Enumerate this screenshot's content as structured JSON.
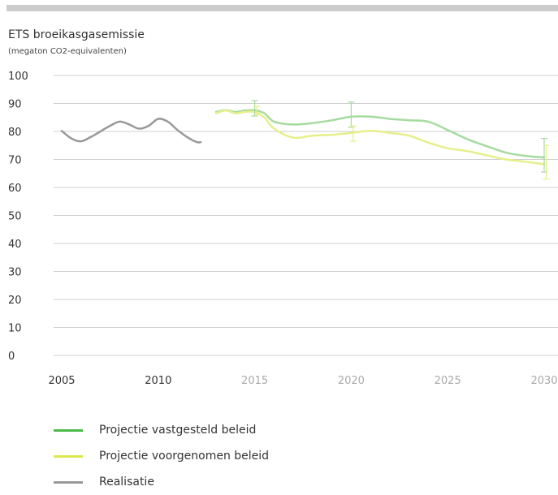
{
  "chart_data": {
    "type": "line",
    "title": "ETS broeikasgasemissie",
    "subtitle": "(megaton CO2-equivalenten)",
    "ylim": [
      0,
      100
    ],
    "yticks": [
      0,
      10,
      20,
      30,
      40,
      50,
      60,
      70,
      80,
      90,
      100
    ],
    "xlim": [
      2005,
      2030
    ],
    "xticks": [
      {
        "value": 2005,
        "label": "2005",
        "color": "#333333"
      },
      {
        "value": 2010,
        "label": "2010",
        "color": "#333333"
      },
      {
        "value": 2015,
        "label": "2015",
        "color": "#aaaaaa"
      },
      {
        "value": 2020,
        "label": "2020",
        "color": "#aaaaaa"
      },
      {
        "value": 2025,
        "label": "2025",
        "color": "#aaaaaa"
      },
      {
        "value": 2030,
        "label": "2030",
        "color": "#aaaaaa"
      }
    ],
    "grid": true,
    "series": [
      {
        "name": "Realisatie",
        "color": "#999999",
        "points": [
          [
            2005,
            80.2
          ],
          [
            2005.5,
            77.5
          ],
          [
            2006,
            76.5
          ],
          [
            2006.5,
            78
          ],
          [
            2007,
            80
          ],
          [
            2007.5,
            82
          ],
          [
            2008,
            83.5
          ],
          [
            2008.5,
            82.5
          ],
          [
            2009,
            81
          ],
          [
            2009.5,
            82
          ],
          [
            2010,
            84.5
          ],
          [
            2010.5,
            83.5
          ],
          [
            2011,
            80.5
          ],
          [
            2011.5,
            78
          ],
          [
            2012,
            76.2
          ],
          [
            2012.2,
            76.2
          ]
        ]
      },
      {
        "name": "Projectie vastgesteld beleid",
        "color": "#a6dba0",
        "points": [
          [
            2013,
            87
          ],
          [
            2013.5,
            87.6
          ],
          [
            2014,
            87
          ],
          [
            2014.5,
            87.5
          ],
          [
            2015,
            87.6
          ],
          [
            2015.5,
            86.5
          ],
          [
            2016,
            83.5
          ],
          [
            2017,
            82.5
          ],
          [
            2018,
            83
          ],
          [
            2019,
            84
          ],
          [
            2020,
            85.3
          ],
          [
            2021,
            85.3
          ],
          [
            2022,
            84.5
          ],
          [
            2023,
            84
          ],
          [
            2024,
            83.5
          ],
          [
            2025,
            80.5
          ],
          [
            2026,
            77.3
          ],
          [
            2027,
            74.8
          ],
          [
            2028,
            72.5
          ],
          [
            2029,
            71.3
          ],
          [
            2030,
            70.7
          ]
        ]
      },
      {
        "name": "Projectie voorgenomen beleid",
        "color": "#e6ef8a",
        "points": [
          [
            2013,
            86.5
          ],
          [
            2013.5,
            87.5
          ],
          [
            2014,
            86.5
          ],
          [
            2014.5,
            87
          ],
          [
            2015,
            87
          ],
          [
            2015.5,
            85
          ],
          [
            2016,
            81
          ],
          [
            2017,
            77.8
          ],
          [
            2018,
            78.5
          ],
          [
            2019,
            78.8
          ],
          [
            2020,
            79.5
          ],
          [
            2021,
            80.2
          ],
          [
            2022,
            79.5
          ],
          [
            2023,
            78.5
          ],
          [
            2024,
            76
          ],
          [
            2025,
            74
          ],
          [
            2026,
            73
          ],
          [
            2027,
            71.5
          ],
          [
            2028,
            70
          ],
          [
            2029,
            69.2
          ],
          [
            2030,
            68.3
          ]
        ]
      }
    ],
    "error_bars": [
      {
        "x": 2015,
        "low": 85.5,
        "high": 91,
        "color": "#a6dba0"
      },
      {
        "x": 2015.1,
        "low": 86,
        "high": 89,
        "color": "#e6ef8a"
      },
      {
        "x": 2020,
        "low": 81.5,
        "high": 90.5,
        "color": "#a6dba0"
      },
      {
        "x": 2020.1,
        "low": 76.5,
        "high": 82,
        "color": "#e6ef8a"
      },
      {
        "x": 2030,
        "low": 65.5,
        "high": 77.5,
        "color": "#a6dba0"
      },
      {
        "x": 2030.1,
        "low": 63,
        "high": 75,
        "color": "#e6ef8a"
      }
    ]
  },
  "legend": [
    {
      "label": "Projectie vastgesteld beleid",
      "color": "#4dbb4a"
    },
    {
      "label": "Projectie voorgenomen beleid",
      "color": "#dde84c"
    },
    {
      "label": "Realisatie",
      "color": "#999999"
    }
  ]
}
